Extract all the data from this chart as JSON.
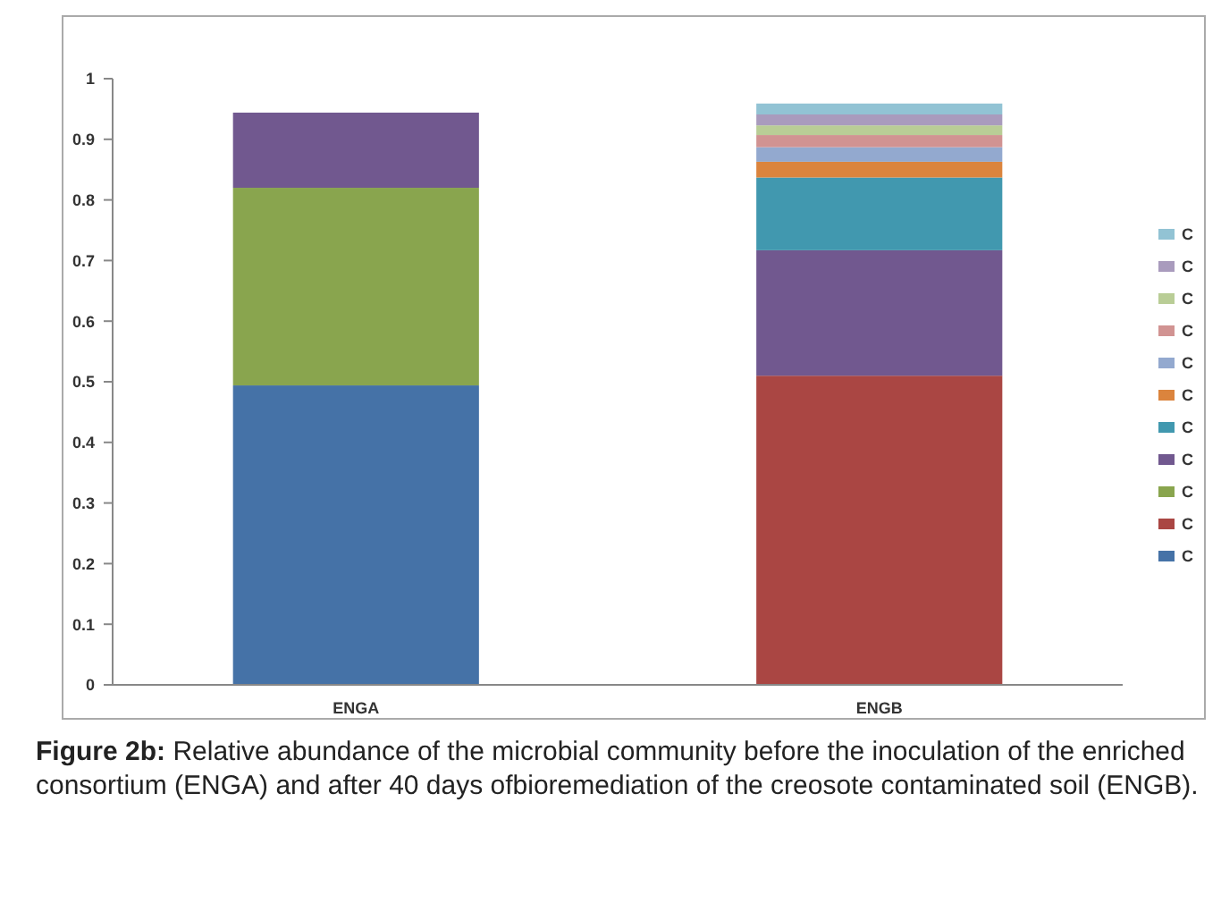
{
  "chart_data": {
    "type": "bar",
    "title": "Figure 2b:",
    "annotations": [
      "Relative abundance of the microbial community before the inoculation of the enriched consortium (ENGA) and after 40 days ofbioremediation of the creosote contaminated soil (ENGB)."
    ],
    "categories": [
      "ENGA",
      "ENGB"
    ],
    "stacked": true,
    "ylim": [
      0,
      1
    ],
    "yticks": [
      0,
      0.1,
      0.2,
      0.3,
      0.4,
      0.5,
      0.6,
      0.7,
      0.8,
      0.9,
      1
    ],
    "grid": false,
    "legend": "right",
    "series": [
      {
        "name": "C",
        "color": "#4572a7",
        "values": [
          0.494,
          null
        ]
      },
      {
        "name": "C",
        "color": "#aa4643",
        "values": [
          null,
          0.51
        ]
      },
      {
        "name": "C",
        "color": "#89a54e",
        "values": [
          0.326,
          null
        ]
      },
      {
        "name": "C",
        "color": "#71588f",
        "values": [
          0.124,
          0.207
        ]
      },
      {
        "name": "C",
        "color": "#4198af",
        "values": [
          null,
          0.12
        ]
      },
      {
        "name": "C",
        "color": "#db843d",
        "values": [
          null,
          0.026
        ]
      },
      {
        "name": "C",
        "color": "#93a9cf",
        "values": [
          null,
          0.024
        ]
      },
      {
        "name": "C",
        "color": "#d19392",
        "values": [
          null,
          0.02
        ]
      },
      {
        "name": "C",
        "color": "#b9cd96",
        "values": [
          null,
          0.016
        ]
      },
      {
        "name": "C",
        "color": "#a99bbd",
        "values": [
          null,
          0.018
        ]
      },
      {
        "name": "C",
        "color": "#92c3d4",
        "values": [
          null,
          0.018
        ]
      }
    ]
  }
}
